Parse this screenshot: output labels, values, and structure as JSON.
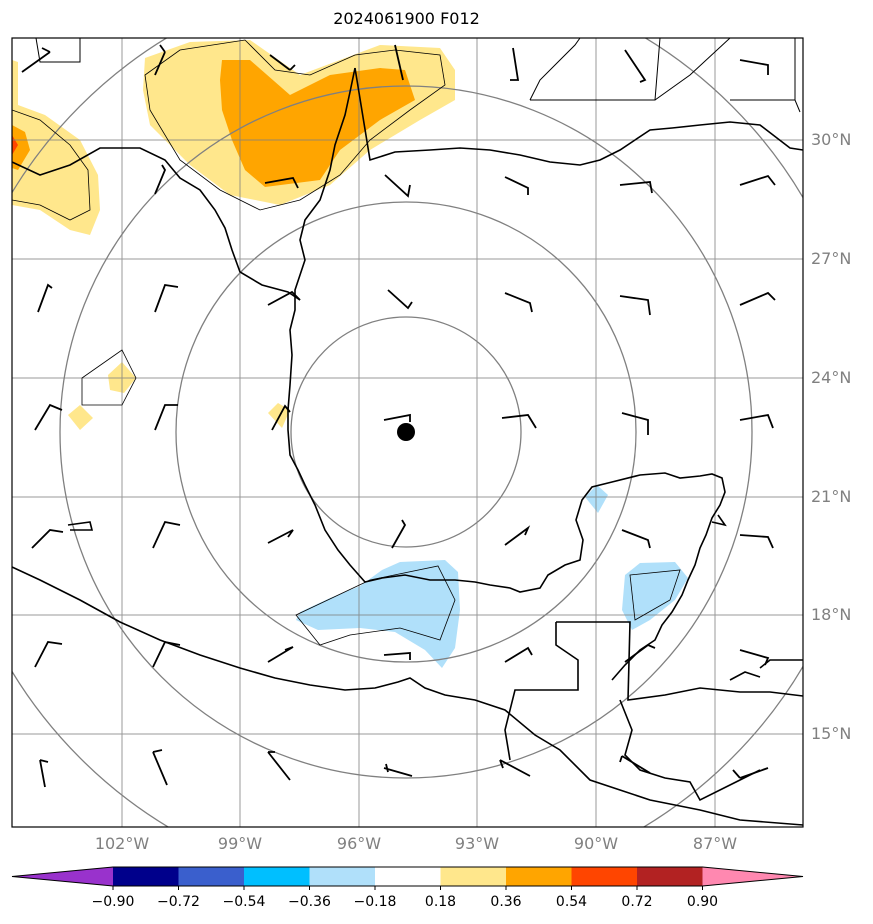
{
  "title": "2024061900 F012",
  "lat_labels": [
    "30°N",
    "27°N",
    "24°N",
    "21°N",
    "18°N",
    "15°N"
  ],
  "lon_labels": [
    "102°W",
    "99°W",
    "96°W",
    "93°W",
    "90°W",
    "87°W"
  ],
  "colorbar": {
    "ticks": [
      "−0.90",
      "−0.72",
      "−0.54",
      "−0.36",
      "−0.18",
      "0.18",
      "0.36",
      "0.54",
      "0.72",
      "0.90"
    ],
    "colors": [
      "#9932cc",
      "#00008b",
      "#3a5fcd",
      "#00bfff",
      "#b0e0fa",
      "#ffffff",
      "#ffe78c",
      "#ffa500",
      "#ff4500",
      "#b22222",
      "#ff88b0"
    ]
  },
  "colors": {
    "grid": "#808080",
    "coast": "#000000",
    "storm_center": "#000000"
  }
}
